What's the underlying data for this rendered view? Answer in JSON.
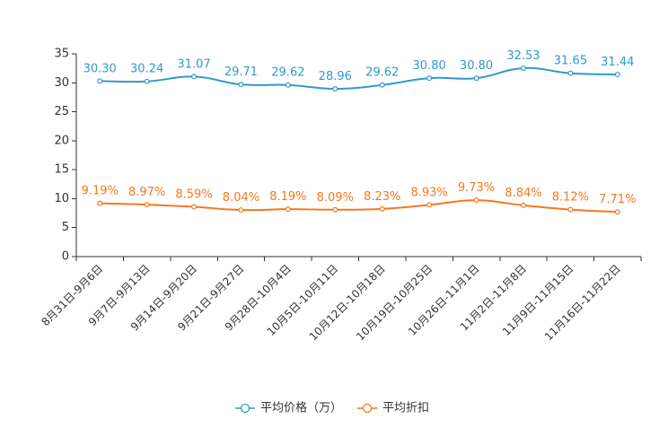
{
  "chart_data": {
    "type": "line",
    "categories": [
      "8月31日-9月6日",
      "9月7日-9月13日",
      "9月14日-9月20日",
      "9月21日-9月27日",
      "9月28日-10月4日",
      "10月5日-10月11日",
      "10月12日-10月18日",
      "10月19日-10月25日",
      "10月26日-11月1日",
      "11月2日-11月8日",
      "11月9日-11月15日",
      "11月16日-11月22日"
    ],
    "series": [
      {
        "name": "平均价格（万）",
        "color": "#3399cc",
        "values": [
          30.3,
          30.24,
          31.07,
          29.71,
          29.62,
          28.96,
          29.62,
          30.8,
          30.8,
          32.53,
          31.65,
          31.44
        ],
        "labels": [
          "30.30",
          "30.24",
          "31.07",
          "29.71",
          "29.62",
          "28.96",
          "29.62",
          "30.80",
          "30.80",
          "32.53",
          "31.65",
          "31.44"
        ]
      },
      {
        "name": "平均折扣",
        "color": "#f5781e",
        "values": [
          9.19,
          8.97,
          8.59,
          8.04,
          8.19,
          8.09,
          8.23,
          8.93,
          9.73,
          8.84,
          8.12,
          7.71
        ],
        "labels": [
          "9.19%",
          "8.97%",
          "8.59%",
          "8.04%",
          "8.19%",
          "8.09%",
          "8.23%",
          "8.93%",
          "9.73%",
          "8.84%",
          "8.12%",
          "7.71%"
        ]
      }
    ],
    "yticks": [
      0,
      5,
      10,
      15,
      20,
      25,
      30,
      35
    ],
    "ylim": [
      0,
      35
    ],
    "title": "",
    "xlabel": "",
    "ylabel": "",
    "grid": false,
    "legend_position": "bottom-center"
  }
}
